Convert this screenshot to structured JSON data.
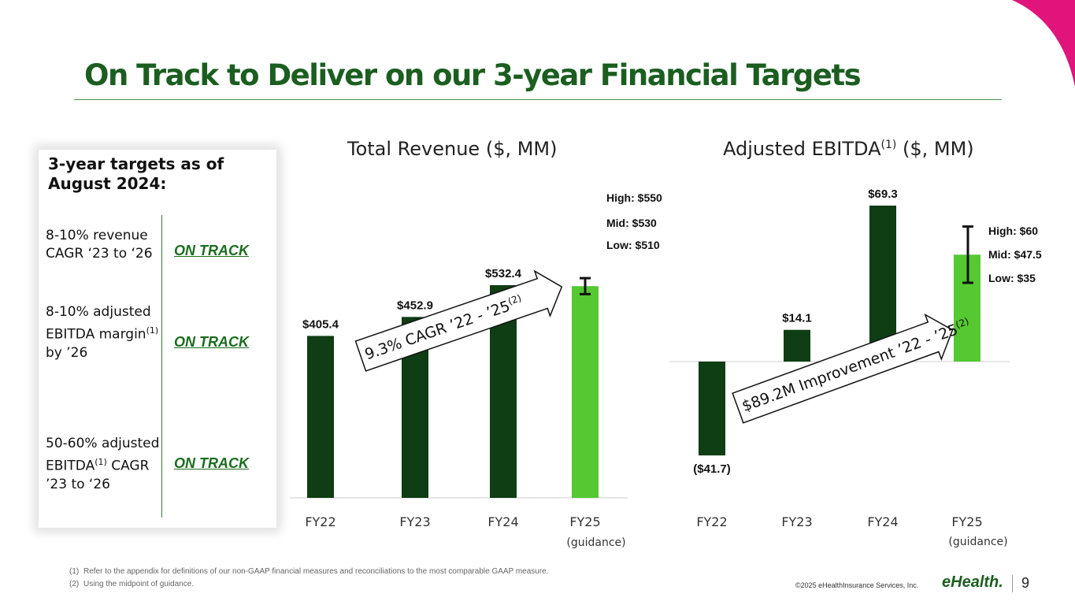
{
  "slide": {
    "title": "On Track to Deliver on our 3-year Financial Targets",
    "page_number": "9",
    "copyright": "©2025 eHealthInsurance Services, Inc.",
    "logo_text": "eHealth."
  },
  "colors": {
    "dark_green": "#0f3d14",
    "light_green": "#55c832",
    "title_green": "#1b5e20",
    "accent_pink": "#e0147a"
  },
  "targets_panel": {
    "heading": "3-year targets as of August 2024:",
    "items": [
      {
        "text": "8-10% revenue CAGR ‘23 to ‘26",
        "status": "ON TRACK"
      },
      {
        "text_before": "8-10% adjusted EBITDA margin",
        "sup": "(1)",
        "text_after": " by ’26",
        "status": "ON TRACK"
      },
      {
        "text_before": "50-60% adjusted EBITDA",
        "sup": "(1)",
        "text_after": " CAGR ’23 to ‘26",
        "status": "ON TRACK"
      }
    ]
  },
  "revenue_chart": {
    "title": "Total Revenue ($, MM)"
  },
  "ebitda_chart": {
    "title_main": "Adjusted EBITDA",
    "title_sup": "(1)",
    "title_unit": " ($, MM)"
  },
  "chart_data": [
    {
      "type": "bar",
      "title": "Total Revenue ($, MM)",
      "categories": [
        "FY22",
        "FY23",
        "FY24",
        "FY25"
      ],
      "category_sublabels": [
        "",
        "",
        "",
        "(guidance)"
      ],
      "values": [
        405.4,
        452.9,
        532.4,
        530
      ],
      "value_labels": [
        "$405.4",
        "$452.9",
        "$532.4",
        ""
      ],
      "guidance": {
        "high": 550,
        "mid": 530,
        "low": 510,
        "labels": [
          "High: $550",
          "Mid: $530",
          "Low: $510"
        ]
      },
      "annotation": {
        "text": "9.3% CAGR ’22 - ’25",
        "sup": "(2)"
      },
      "ylim": [
        0,
        600
      ]
    },
    {
      "type": "bar",
      "title": "Adjusted EBITDA(1) ($, MM)",
      "categories": [
        "FY22",
        "FY23",
        "FY24",
        "FY25"
      ],
      "category_sublabels": [
        "",
        "",
        "",
        "(guidance)"
      ],
      "values": [
        -41.7,
        14.1,
        69.3,
        47.5
      ],
      "value_labels": [
        "($41.7)",
        "$14.1",
        "$69.3",
        ""
      ],
      "guidance": {
        "high": 60,
        "mid": 47.5,
        "low": 35,
        "labels": [
          "High: $60",
          "Mid: $47.5",
          "Low: $35"
        ]
      },
      "annotation": {
        "text": "$89.2M Improvement ’22 - ’25",
        "sup": "(2)"
      },
      "ylim": [
        -50,
        75
      ]
    }
  ],
  "footnotes": [
    {
      "num": "(1)",
      "text": "Refer to the appendix for definitions of our non-GAAP financial measures and reconciliations to the most comparable GAAP measure."
    },
    {
      "num": "(2)",
      "text": "Using the midpoint of guidance."
    }
  ]
}
